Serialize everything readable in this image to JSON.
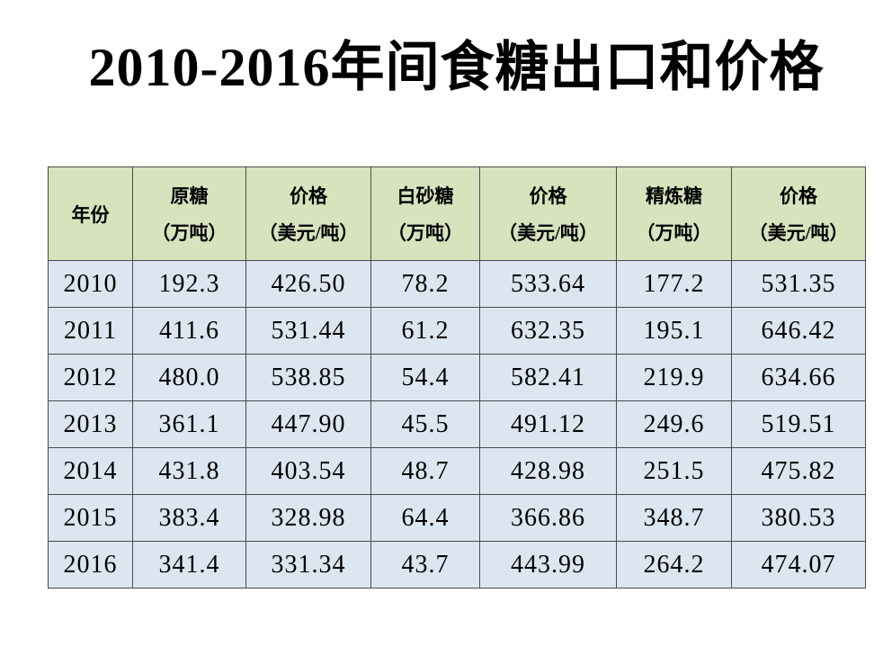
{
  "title": "2010-2016年间食糖出口和价格",
  "chart_data": {
    "type": "table",
    "title": "2010-2016年间食糖出口和价格",
    "columns": [
      {
        "label": "年份",
        "unit": ""
      },
      {
        "label": "原糖",
        "unit": "（万吨）"
      },
      {
        "label": "价格",
        "unit": "（美元/吨）"
      },
      {
        "label": "白砂糖",
        "unit": "（万吨）"
      },
      {
        "label": "价格",
        "unit": "（美元/吨）"
      },
      {
        "label": "精炼糖",
        "unit": "（万吨）"
      },
      {
        "label": "价格",
        "unit": "（美元/吨）"
      }
    ],
    "rows": [
      [
        "2010",
        "192.3",
        "426.50",
        "78.2",
        "533.64",
        "177.2",
        "531.35"
      ],
      [
        "2011",
        "411.6",
        "531.44",
        "61.2",
        "632.35",
        "195.1",
        "646.42"
      ],
      [
        "2012",
        "480.0",
        "538.85",
        "54.4",
        "582.41",
        "219.9",
        "634.66"
      ],
      [
        "2013",
        "361.1",
        "447.90",
        "45.5",
        "491.12",
        "249.6",
        "519.51"
      ],
      [
        "2014",
        "431.8",
        "403.54",
        "48.7",
        "428.98",
        "251.5",
        "475.82"
      ],
      [
        "2015",
        "383.4",
        "328.98",
        "64.4",
        "366.86",
        "348.7",
        "380.53"
      ],
      [
        "2016",
        "341.4",
        "331.34",
        "43.7",
        "443.99",
        "264.2",
        "474.07"
      ]
    ]
  },
  "colors": {
    "header_bg": "#d6e3bc",
    "row_bg": "#dce6f1",
    "border": "#4a4a4a",
    "text": "#000000",
    "background": "#ffffff"
  }
}
